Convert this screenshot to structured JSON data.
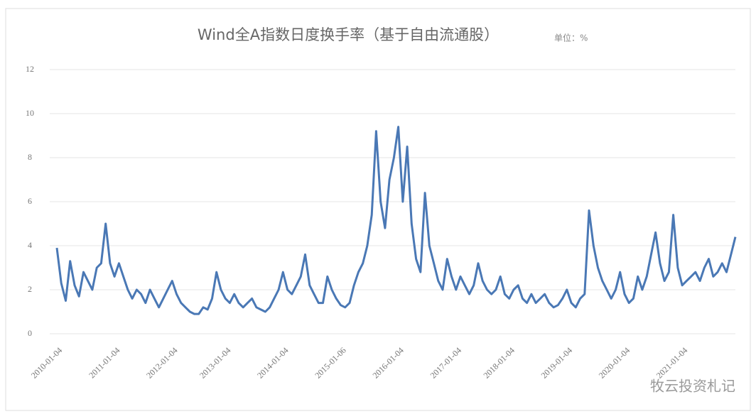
{
  "chart_data": {
    "type": "line",
    "title": "Wind全A指数日度换手率（基于自由流通股）",
    "unit": "单位：%",
    "watermark": "牧云投资札记",
    "categories": [
      null,
      "2010-01-04",
      null,
      null,
      null,
      null,
      null,
      null,
      null,
      null,
      null,
      null,
      null,
      null,
      "2011-01-04",
      null,
      null,
      null,
      null,
      null,
      null,
      null,
      null,
      null,
      null,
      null,
      null,
      "2012-01-04",
      null,
      null,
      null,
      null,
      null,
      null,
      null,
      null,
      null,
      null,
      null,
      "2013-01-04",
      null,
      null,
      null,
      null,
      null,
      null,
      null,
      null,
      null,
      null,
      null,
      null,
      "2014-01-04",
      null,
      null,
      null,
      null,
      null,
      null,
      null,
      null,
      null,
      null,
      null,
      null,
      "2015-01-06",
      null,
      null,
      null,
      null,
      null,
      null,
      null,
      null,
      null,
      null,
      null,
      null,
      "2016-01-04",
      null,
      null,
      null,
      null,
      null,
      null,
      null,
      null,
      null,
      null,
      null,
      null,
      "2017-01-04",
      null,
      null,
      null,
      null,
      null,
      null,
      null,
      null,
      null,
      null,
      null,
      "2018-01-04",
      null,
      null,
      null,
      null,
      null,
      null,
      null,
      null,
      null,
      null,
      null,
      null,
      "2019-01-04",
      null,
      null,
      null,
      null,
      null,
      null,
      null,
      null,
      null,
      null,
      null,
      null,
      "2020-01-04",
      null,
      null,
      null,
      null,
      null,
      null,
      null,
      null,
      null,
      null,
      null,
      null,
      "2021-01-04",
      null,
      null,
      null,
      null,
      null,
      null,
      null,
      null,
      null,
      null,
      null
    ],
    "values": [
      3.9,
      2.3,
      1.5,
      3.3,
      2.2,
      1.7,
      2.8,
      2.4,
      2.0,
      3.0,
      3.2,
      5.0,
      3.2,
      2.6,
      3.2,
      2.6,
      2.0,
      1.6,
      2.0,
      1.8,
      1.4,
      2.0,
      1.6,
      1.2,
      1.6,
      2.0,
      2.4,
      1.8,
      1.4,
      1.2,
      1.0,
      0.9,
      0.9,
      1.2,
      1.1,
      1.6,
      2.8,
      2.0,
      1.6,
      1.4,
      1.8,
      1.4,
      1.2,
      1.4,
      1.6,
      1.2,
      1.1,
      1.0,
      1.2,
      1.6,
      2.0,
      2.8,
      2.0,
      1.8,
      2.2,
      2.6,
      3.6,
      2.2,
      1.8,
      1.4,
      1.4,
      2.6,
      2.0,
      1.6,
      1.3,
      1.2,
      1.4,
      2.2,
      2.8,
      3.2,
      4.0,
      5.4,
      9.2,
      6.0,
      4.8,
      7.0,
      8.0,
      9.4,
      6.0,
      8.5,
      5.0,
      3.4,
      2.8,
      6.4,
      4.0,
      3.2,
      2.4,
      2.0,
      3.4,
      2.6,
      2.0,
      2.6,
      2.2,
      1.8,
      2.2,
      3.2,
      2.4,
      2.0,
      1.8,
      2.0,
      2.6,
      1.8,
      1.6,
      2.0,
      2.2,
      1.6,
      1.4,
      1.8,
      1.4,
      1.6,
      1.8,
      1.4,
      1.2,
      1.3,
      1.6,
      2.0,
      1.4,
      1.2,
      1.6,
      1.8,
      5.6,
      4.0,
      3.0,
      2.4,
      2.0,
      1.6,
      2.0,
      2.8,
      1.8,
      1.4,
      1.6,
      2.6,
      2.0,
      2.6,
      3.6,
      4.6,
      3.2,
      2.4,
      2.8,
      5.4,
      3.0,
      2.2,
      2.4,
      2.6,
      2.8,
      2.4,
      3.0,
      3.4,
      2.6,
      2.8,
      3.2,
      2.8,
      3.6,
      4.4
    ],
    "color": "#4a78b5",
    "ylim": [
      0,
      12
    ],
    "yticks": [
      0,
      2,
      4,
      6,
      8,
      10,
      12
    ],
    "grid": true
  }
}
